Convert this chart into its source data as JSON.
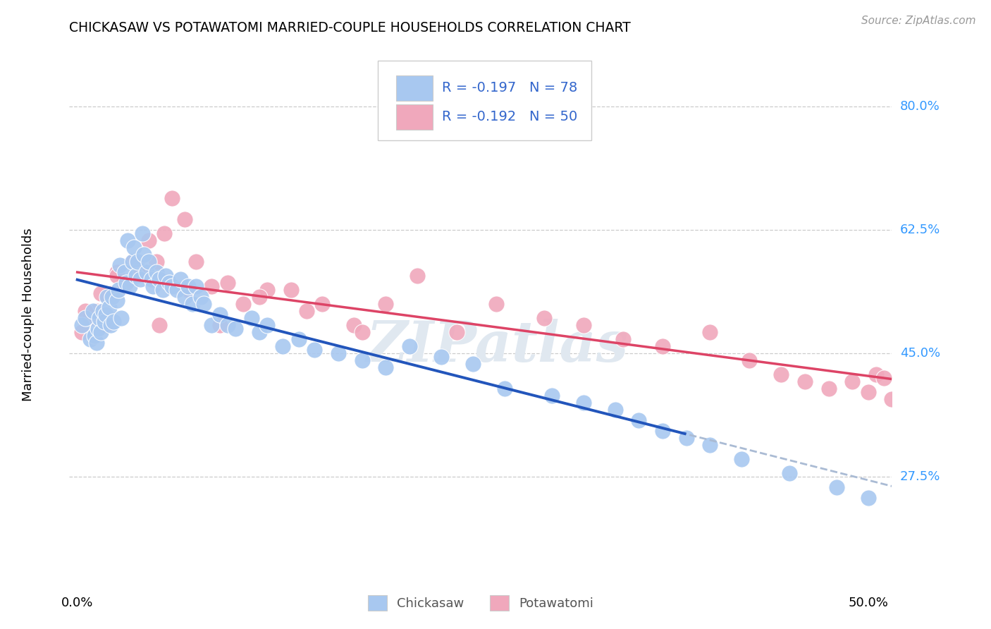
{
  "title": "CHICKASAW VS POTAWATOMI MARRIED-COUPLE HOUSEHOLDS CORRELATION CHART",
  "source": "Source: ZipAtlas.com",
  "ylabel": "Married-couple Households",
  "ytick_labels": [
    "80.0%",
    "62.5%",
    "45.0%",
    "27.5%"
  ],
  "ytick_values": [
    0.8,
    0.625,
    0.45,
    0.275
  ],
  "xlim": [
    -0.005,
    0.515
  ],
  "ylim": [
    0.13,
    0.88
  ],
  "legend_line1": "R = -0.197   N = 78",
  "legend_line2": "R = -0.192   N = 50",
  "chickasaw_color": "#a8c8f0",
  "potawatomi_color": "#f0a8bc",
  "regression_chickasaw_color": "#2255bb",
  "regression_potawatomi_color": "#dd4466",
  "regression_dashed_color": "#aabbd4",
  "watermark": "ZIPatlas",
  "background_color": "#ffffff",
  "grid_color": "#cccccc",
  "chickasaw_x": [
    0.003,
    0.005,
    0.008,
    0.01,
    0.011,
    0.012,
    0.013,
    0.014,
    0.015,
    0.016,
    0.017,
    0.018,
    0.019,
    0.02,
    0.021,
    0.022,
    0.023,
    0.025,
    0.026,
    0.027,
    0.028,
    0.03,
    0.031,
    0.032,
    0.033,
    0.035,
    0.036,
    0.037,
    0.038,
    0.04,
    0.041,
    0.042,
    0.044,
    0.045,
    0.047,
    0.048,
    0.05,
    0.052,
    0.054,
    0.056,
    0.058,
    0.06,
    0.063,
    0.065,
    0.068,
    0.07,
    0.073,
    0.075,
    0.078,
    0.08,
    0.085,
    0.09,
    0.095,
    0.1,
    0.11,
    0.115,
    0.12,
    0.13,
    0.14,
    0.15,
    0.165,
    0.18,
    0.195,
    0.21,
    0.23,
    0.25,
    0.27,
    0.3,
    0.32,
    0.34,
    0.355,
    0.37,
    0.385,
    0.4,
    0.42,
    0.45,
    0.48,
    0.5
  ],
  "chickasaw_y": [
    0.49,
    0.5,
    0.47,
    0.51,
    0.475,
    0.465,
    0.485,
    0.5,
    0.48,
    0.51,
    0.495,
    0.505,
    0.53,
    0.515,
    0.49,
    0.53,
    0.495,
    0.525,
    0.54,
    0.575,
    0.5,
    0.565,
    0.55,
    0.61,
    0.545,
    0.58,
    0.6,
    0.56,
    0.58,
    0.555,
    0.62,
    0.59,
    0.565,
    0.58,
    0.555,
    0.545,
    0.565,
    0.555,
    0.54,
    0.56,
    0.55,
    0.545,
    0.54,
    0.555,
    0.53,
    0.545,
    0.52,
    0.545,
    0.53,
    0.52,
    0.49,
    0.505,
    0.49,
    0.485,
    0.5,
    0.48,
    0.49,
    0.46,
    0.47,
    0.455,
    0.45,
    0.44,
    0.43,
    0.46,
    0.445,
    0.435,
    0.4,
    0.39,
    0.38,
    0.37,
    0.355,
    0.34,
    0.33,
    0.32,
    0.3,
    0.28,
    0.26,
    0.245
  ],
  "potawatomi_x": [
    0.003,
    0.008,
    0.012,
    0.018,
    0.022,
    0.025,
    0.03,
    0.035,
    0.04,
    0.045,
    0.05,
    0.055,
    0.06,
    0.068,
    0.075,
    0.085,
    0.095,
    0.105,
    0.12,
    0.135,
    0.155,
    0.175,
    0.195,
    0.215,
    0.24,
    0.265,
    0.295,
    0.32,
    0.345,
    0.37,
    0.4,
    0.425,
    0.445,
    0.46,
    0.475,
    0.49,
    0.5,
    0.505,
    0.51,
    0.515,
    0.005,
    0.015,
    0.025,
    0.038,
    0.052,
    0.07,
    0.09,
    0.115,
    0.145,
    0.18
  ],
  "potawatomi_y": [
    0.48,
    0.5,
    0.51,
    0.49,
    0.535,
    0.565,
    0.545,
    0.58,
    0.57,
    0.61,
    0.58,
    0.62,
    0.67,
    0.64,
    0.58,
    0.545,
    0.55,
    0.52,
    0.54,
    0.54,
    0.52,
    0.49,
    0.52,
    0.56,
    0.48,
    0.52,
    0.5,
    0.49,
    0.47,
    0.46,
    0.48,
    0.44,
    0.42,
    0.41,
    0.4,
    0.41,
    0.395,
    0.42,
    0.415,
    0.385,
    0.51,
    0.535,
    0.56,
    0.565,
    0.49,
    0.54,
    0.49,
    0.53,
    0.51,
    0.48
  ]
}
